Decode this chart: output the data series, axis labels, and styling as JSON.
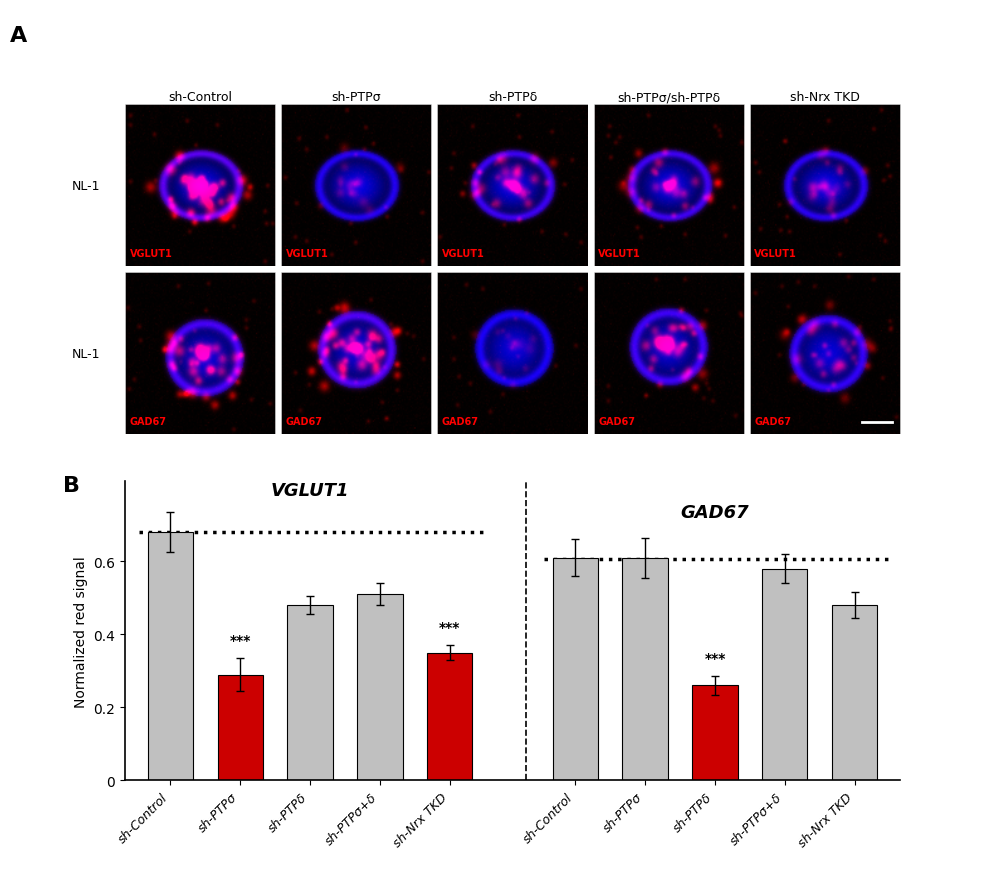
{
  "panel_A_label": "A",
  "panel_B_label": "B",
  "col_labels": [
    "sh-Control",
    "sh-PTPσ",
    "sh-PTPδ",
    "sh-PTPσ/sh-PTPδ",
    "sh-Nrx TKD"
  ],
  "row_labels": [
    "NL-1",
    "NL-1"
  ],
  "channel_labels_row1": [
    "VGLUT1",
    "VGLUT1",
    "VGLUT1",
    "VGLUT1",
    "VGLUT1"
  ],
  "channel_labels_row2": [
    "GAD67",
    "GAD67",
    "GAD67",
    "GAD67",
    "GAD67"
  ],
  "vglut1_title": "VGLUT1",
  "gad67_title": "GAD67",
  "ylabel": "Normalized red signal",
  "vglut1_values": [
    0.68,
    0.29,
    0.48,
    0.51,
    0.35
  ],
  "vglut1_errors": [
    0.055,
    0.045,
    0.025,
    0.03,
    0.02
  ],
  "vglut1_dotted_line": 0.68,
  "gad67_values": [
    0.61,
    0.61,
    0.26,
    0.58,
    0.48
  ],
  "gad67_errors": [
    0.05,
    0.055,
    0.025,
    0.04,
    0.035
  ],
  "gad67_dotted_line": 0.605,
  "bar_colors_vglut1": [
    "#c0c0c0",
    "#cc0000",
    "#c0c0c0",
    "#c0c0c0",
    "#cc0000"
  ],
  "bar_colors_gad67": [
    "#c0c0c0",
    "#c0c0c0",
    "#cc0000",
    "#c0c0c0",
    "#c0c0c0"
  ],
  "sig_vglut1": [
    false,
    true,
    false,
    false,
    true
  ],
  "sig_gad67": [
    false,
    false,
    true,
    false,
    false
  ],
  "x_labels": [
    "sh-Control",
    "sh-PTPσ",
    "sh-PTPδ",
    "sh-PTPσ+δ",
    "sh-Nrx TKD"
  ],
  "ylim": [
    0,
    0.82
  ],
  "yticks": [
    0,
    0.2,
    0.4,
    0.6
  ],
  "background_color": "#ffffff",
  "bar_width": 0.65,
  "vglut1_red_intensity": [
    0.85,
    0.3,
    0.55,
    0.58,
    0.38
  ],
  "gad67_red_intensity": [
    0.75,
    0.85,
    0.25,
    0.65,
    0.52
  ]
}
